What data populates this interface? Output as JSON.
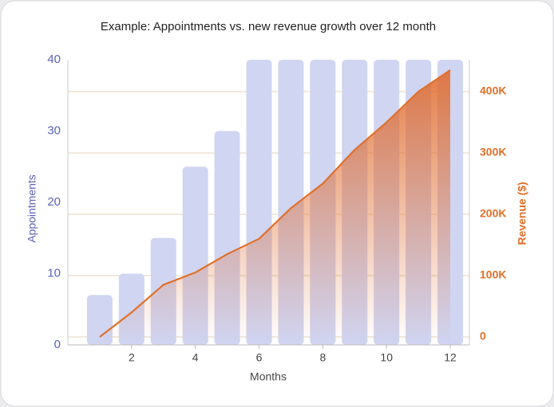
{
  "chart_data": {
    "type": "bar",
    "title": "Example: Appointments vs. new revenue growth over 12 month",
    "xlabel": "Months",
    "ylabel": "Appointments",
    "y2label": "Revenue ($)",
    "x": [
      1,
      2,
      3,
      4,
      5,
      6,
      7,
      8,
      9,
      10,
      11,
      12
    ],
    "series": [
      {
        "type": "bar",
        "color": "#d0d5f2",
        "values": [
          7,
          10,
          15,
          25,
          30,
          40,
          40,
          40,
          40,
          40,
          40,
          40
        ]
      },
      {
        "type": "line",
        "axis": "y2",
        "color": "#e0702a",
        "values": [
          0,
          40000,
          85000,
          105000,
          135000,
          160000,
          210000,
          250000,
          305000,
          350000,
          400000,
          435000
        ]
      }
    ],
    "xlim": [
      0,
      12.6
    ],
    "xticks": [
      2,
      4,
      6,
      8,
      10,
      12
    ],
    "ylim": [
      0,
      40
    ],
    "yticks": [
      0,
      10,
      20,
      30,
      40
    ],
    "y2lim": [
      -13000,
      452000
    ],
    "y2ticks": [
      0,
      {
        "value": 100000,
        "label": "100K"
      },
      {
        "value": 200000,
        "label": "200K"
      },
      {
        "value": 300000,
        "label": "300K"
      },
      {
        "value": 400000,
        "label": "400K"
      }
    ],
    "grid": true
  }
}
